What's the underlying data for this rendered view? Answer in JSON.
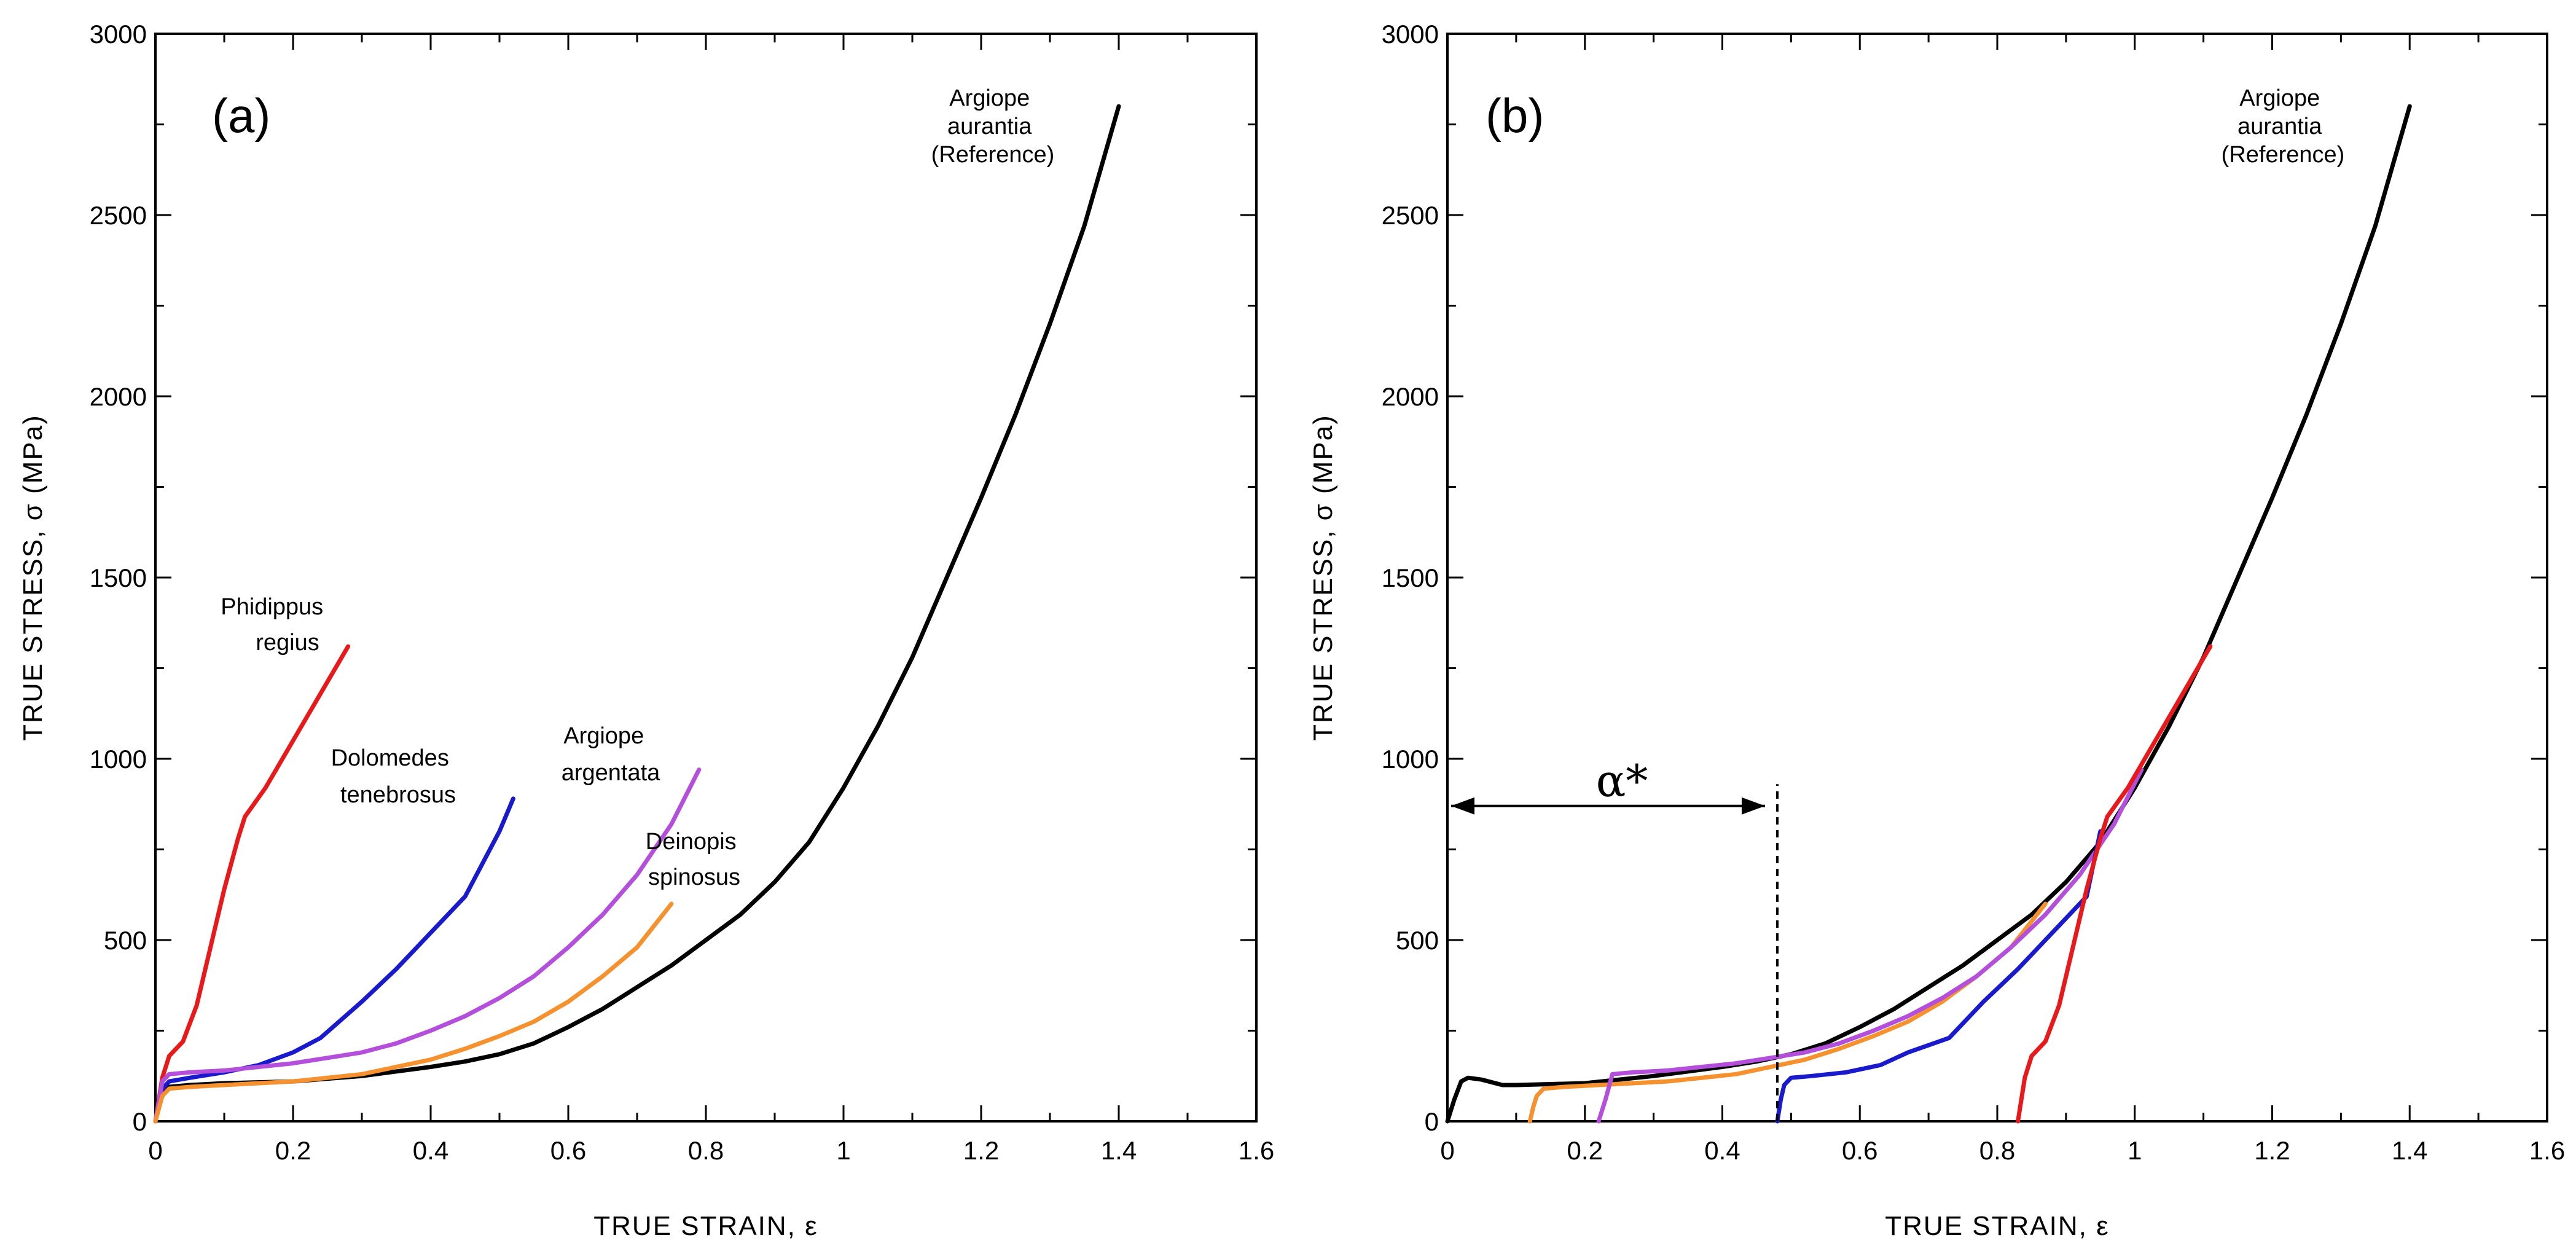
{
  "chart_data": [
    {
      "type": "line",
      "panel": "(a)",
      "xlabel": "TRUE STRAIN, ε",
      "ylabel": "TRUE STRESS, σ (MPa)",
      "xlim": [
        0,
        1.6
      ],
      "ylim": [
        0,
        3000
      ],
      "x_ticks": [
        0,
        0.2,
        0.4,
        0.6,
        0.8,
        1,
        1.2,
        1.4,
        1.6
      ],
      "x_tick_labels": [
        "0",
        "0.2",
        "0.4",
        "0.6",
        "0.8",
        "1",
        "1.2",
        "1.4",
        "1.6"
      ],
      "y_ticks": [
        0,
        500,
        1000,
        1500,
        2000,
        2500,
        3000
      ],
      "y_tick_labels": [
        "0",
        "500",
        "1000",
        "1500",
        "2000",
        "2500",
        "3000"
      ],
      "series": [
        {
          "name": "Argiope aurantia (Reference)",
          "color": "#000000",
          "x": [
            0,
            0.005,
            0.01,
            0.02,
            0.05,
            0.1,
            0.2,
            0.3,
            0.4,
            0.45,
            0.5,
            0.55,
            0.6,
            0.65,
            0.7,
            0.75,
            0.8,
            0.85,
            0.9,
            0.95,
            1.0,
            1.05,
            1.1,
            1.15,
            1.2,
            1.25,
            1.3,
            1.35,
            1.4
          ],
          "y": [
            0,
            40,
            70,
            95,
            100,
            105,
            110,
            125,
            150,
            165,
            185,
            215,
            260,
            310,
            370,
            430,
            500,
            570,
            660,
            770,
            920,
            1090,
            1280,
            1500,
            1720,
            1950,
            2200,
            2470,
            2800
          ]
        },
        {
          "name": "Phidippus regius",
          "color": "#e8191a",
          "x": [
            0,
            0.005,
            0.01,
            0.02,
            0.04,
            0.06,
            0.08,
            0.1,
            0.12,
            0.13,
            0.16,
            0.2,
            0.24,
            0.28
          ],
          "y": [
            0,
            60,
            120,
            180,
            220,
            320,
            480,
            640,
            780,
            840,
            920,
            1050,
            1180,
            1310
          ]
        },
        {
          "name": "Dolomedes tenebrosus",
          "color": "#1a1acd",
          "x": [
            0,
            0.01,
            0.02,
            0.05,
            0.1,
            0.15,
            0.2,
            0.24,
            0.3,
            0.35,
            0.4,
            0.45,
            0.5,
            0.52
          ],
          "y": [
            0,
            90,
            110,
            120,
            135,
            155,
            190,
            230,
            330,
            420,
            520,
            620,
            800,
            890
          ]
        },
        {
          "name": "Argiope argentata",
          "color": "#b44fdb",
          "x": [
            0,
            0.01,
            0.02,
            0.05,
            0.1,
            0.15,
            0.2,
            0.25,
            0.3,
            0.35,
            0.4,
            0.45,
            0.5,
            0.55,
            0.6,
            0.65,
            0.7,
            0.75,
            0.79
          ],
          "y": [
            0,
            110,
            130,
            135,
            140,
            150,
            160,
            175,
            190,
            215,
            250,
            290,
            340,
            400,
            480,
            570,
            680,
            820,
            970
          ]
        },
        {
          "name": "Deinopis spinosus",
          "color": "#f5922f",
          "x": [
            0,
            0.01,
            0.02,
            0.05,
            0.1,
            0.2,
            0.3,
            0.4,
            0.45,
            0.5,
            0.55,
            0.6,
            0.65,
            0.7,
            0.75
          ],
          "y": [
            0,
            70,
            90,
            95,
            100,
            110,
            130,
            170,
            200,
            235,
            275,
            330,
            400,
            480,
            600
          ]
        }
      ],
      "annotations": [
        {
          "lines": [
            "Argiope",
            "aurantia",
            "(Reference)"
          ]
        },
        {
          "lines": [
            "Phidippus",
            "regius"
          ]
        },
        {
          "lines": [
            "Dolomedes",
            "tenebrosus"
          ]
        },
        {
          "lines": [
            "Argiope",
            "argentata"
          ]
        },
        {
          "lines": [
            "Deinopis",
            "spinosus"
          ]
        }
      ]
    },
    {
      "type": "line",
      "panel": "(b)",
      "xlabel": "TRUE STRAIN, ε",
      "ylabel": "TRUE STRESS, σ (MPa)",
      "xlim": [
        0,
        1.6
      ],
      "ylim": [
        0,
        3000
      ],
      "x_ticks": [
        0,
        0.2,
        0.4,
        0.6,
        0.8,
        1,
        1.2,
        1.4,
        1.6
      ],
      "x_tick_labels": [
        "0",
        "0.2",
        "0.4",
        "0.6",
        "0.8",
        "1",
        "1.2",
        "1.4",
        "1.6"
      ],
      "y_ticks": [
        0,
        500,
        1000,
        1500,
        2000,
        2500,
        3000
      ],
      "y_tick_labels": [
        "0",
        "500",
        "1000",
        "1500",
        "2000",
        "2500",
        "3000"
      ],
      "series": [
        {
          "name": "Argiope aurantia (Reference)",
          "color": "#000000",
          "x": [
            0,
            0.01,
            0.02,
            0.03,
            0.05,
            0.08,
            0.1,
            0.2,
            0.3,
            0.4,
            0.45,
            0.5,
            0.55,
            0.6,
            0.65,
            0.7,
            0.75,
            0.8,
            0.85,
            0.9,
            0.95,
            1.0,
            1.05,
            1.1,
            1.15,
            1.2,
            1.25,
            1.3,
            1.35,
            1.4
          ],
          "y": [
            0,
            60,
            110,
            120,
            115,
            100,
            100,
            105,
            125,
            150,
            165,
            185,
            215,
            260,
            310,
            370,
            430,
            500,
            570,
            660,
            770,
            920,
            1090,
            1280,
            1500,
            1720,
            1950,
            2200,
            2470,
            2800
          ]
        },
        {
          "name": "Deinopis spinosus",
          "color": "#f5922f",
          "x": [
            0.12,
            0.125,
            0.13,
            0.14,
            0.17,
            0.22,
            0.32,
            0.42,
            0.52,
            0.57,
            0.62,
            0.67,
            0.72,
            0.77,
            0.82,
            0.87
          ],
          "y": [
            0,
            40,
            70,
            90,
            95,
            100,
            110,
            130,
            170,
            200,
            235,
            275,
            330,
            400,
            480,
            600
          ]
        },
        {
          "name": "Argiope argentata",
          "color": "#b44fdb",
          "x": [
            0.22,
            0.23,
            0.24,
            0.27,
            0.32,
            0.37,
            0.42,
            0.47,
            0.52,
            0.57,
            0.62,
            0.67,
            0.72,
            0.77,
            0.82,
            0.87,
            0.92,
            0.97,
            1.01
          ],
          "y": [
            0,
            60,
            130,
            135,
            140,
            150,
            160,
            175,
            190,
            215,
            250,
            290,
            340,
            400,
            480,
            570,
            680,
            820,
            970
          ]
        },
        {
          "name": "Dolomedes tenebrosus",
          "color": "#1a1acd",
          "x": [
            0.48,
            0.485,
            0.49,
            0.5,
            0.53,
            0.58,
            0.63,
            0.67,
            0.73,
            0.78,
            0.83,
            0.88,
            0.93,
            0.95
          ],
          "y": [
            0,
            60,
            100,
            120,
            125,
            135,
            155,
            190,
            230,
            330,
            420,
            520,
            620,
            800
          ]
        },
        {
          "name": "Phidippus regius",
          "color": "#e8191a",
          "x": [
            0.83,
            0.835,
            0.84,
            0.85,
            0.87,
            0.89,
            0.91,
            0.93,
            0.95,
            0.96,
            0.99,
            1.03,
            1.07,
            1.11
          ],
          "y": [
            0,
            60,
            120,
            180,
            220,
            320,
            480,
            640,
            780,
            840,
            920,
            1050,
            1180,
            1310
          ]
        }
      ],
      "annotations": [
        {
          "lines": [
            "Argiope",
            "aurantia",
            "(Reference)"
          ]
        }
      ],
      "alpha_marker": {
        "label": "α*",
        "x_start": 0,
        "x_end": 0.48,
        "y": 870,
        "dashed_x": 0.48
      }
    }
  ]
}
